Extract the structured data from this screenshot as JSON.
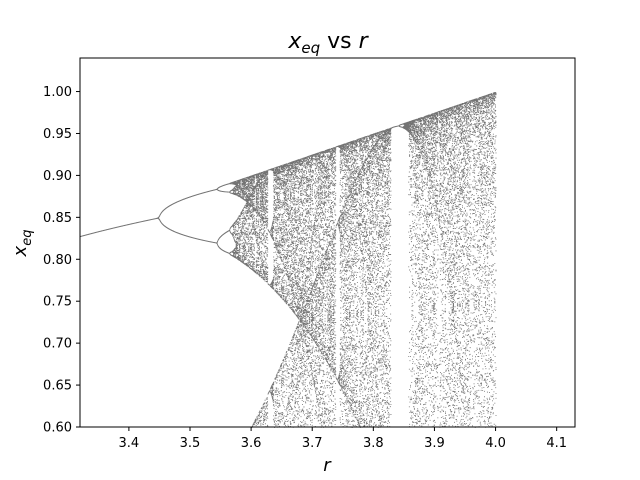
{
  "chart_data": {
    "type": "scatter",
    "title": {
      "main": "x",
      "sub": "eq",
      "suffix": " vs ",
      "tail": "r"
    },
    "xlabel": "r",
    "ylabel": {
      "main": "x",
      "sub": "eq"
    },
    "xlim": [
      3.32,
      4.13
    ],
    "ylim": [
      0.6,
      1.04
    ],
    "xticks": [
      3.4,
      3.5,
      3.6,
      3.7,
      3.8,
      3.9,
      4.0,
      4.1
    ],
    "xtick_labels": [
      "3.4",
      "3.5",
      "3.6",
      "3.7",
      "3.8",
      "3.9",
      "4.0",
      "4.1"
    ],
    "yticks": [
      0.6,
      0.65,
      0.7,
      0.75,
      0.8,
      0.85,
      0.9,
      0.95,
      1.0
    ],
    "ytick_labels": [
      "0.60",
      "0.65",
      "0.70",
      "0.75",
      "0.80",
      "0.85",
      "0.90",
      "0.95",
      "1.00"
    ],
    "grid": false,
    "series": [
      {
        "r_min": 3.32,
        "r_max": 4.0,
        "map": "logistic",
        "marker_color": "#000000"
      }
    ]
  }
}
